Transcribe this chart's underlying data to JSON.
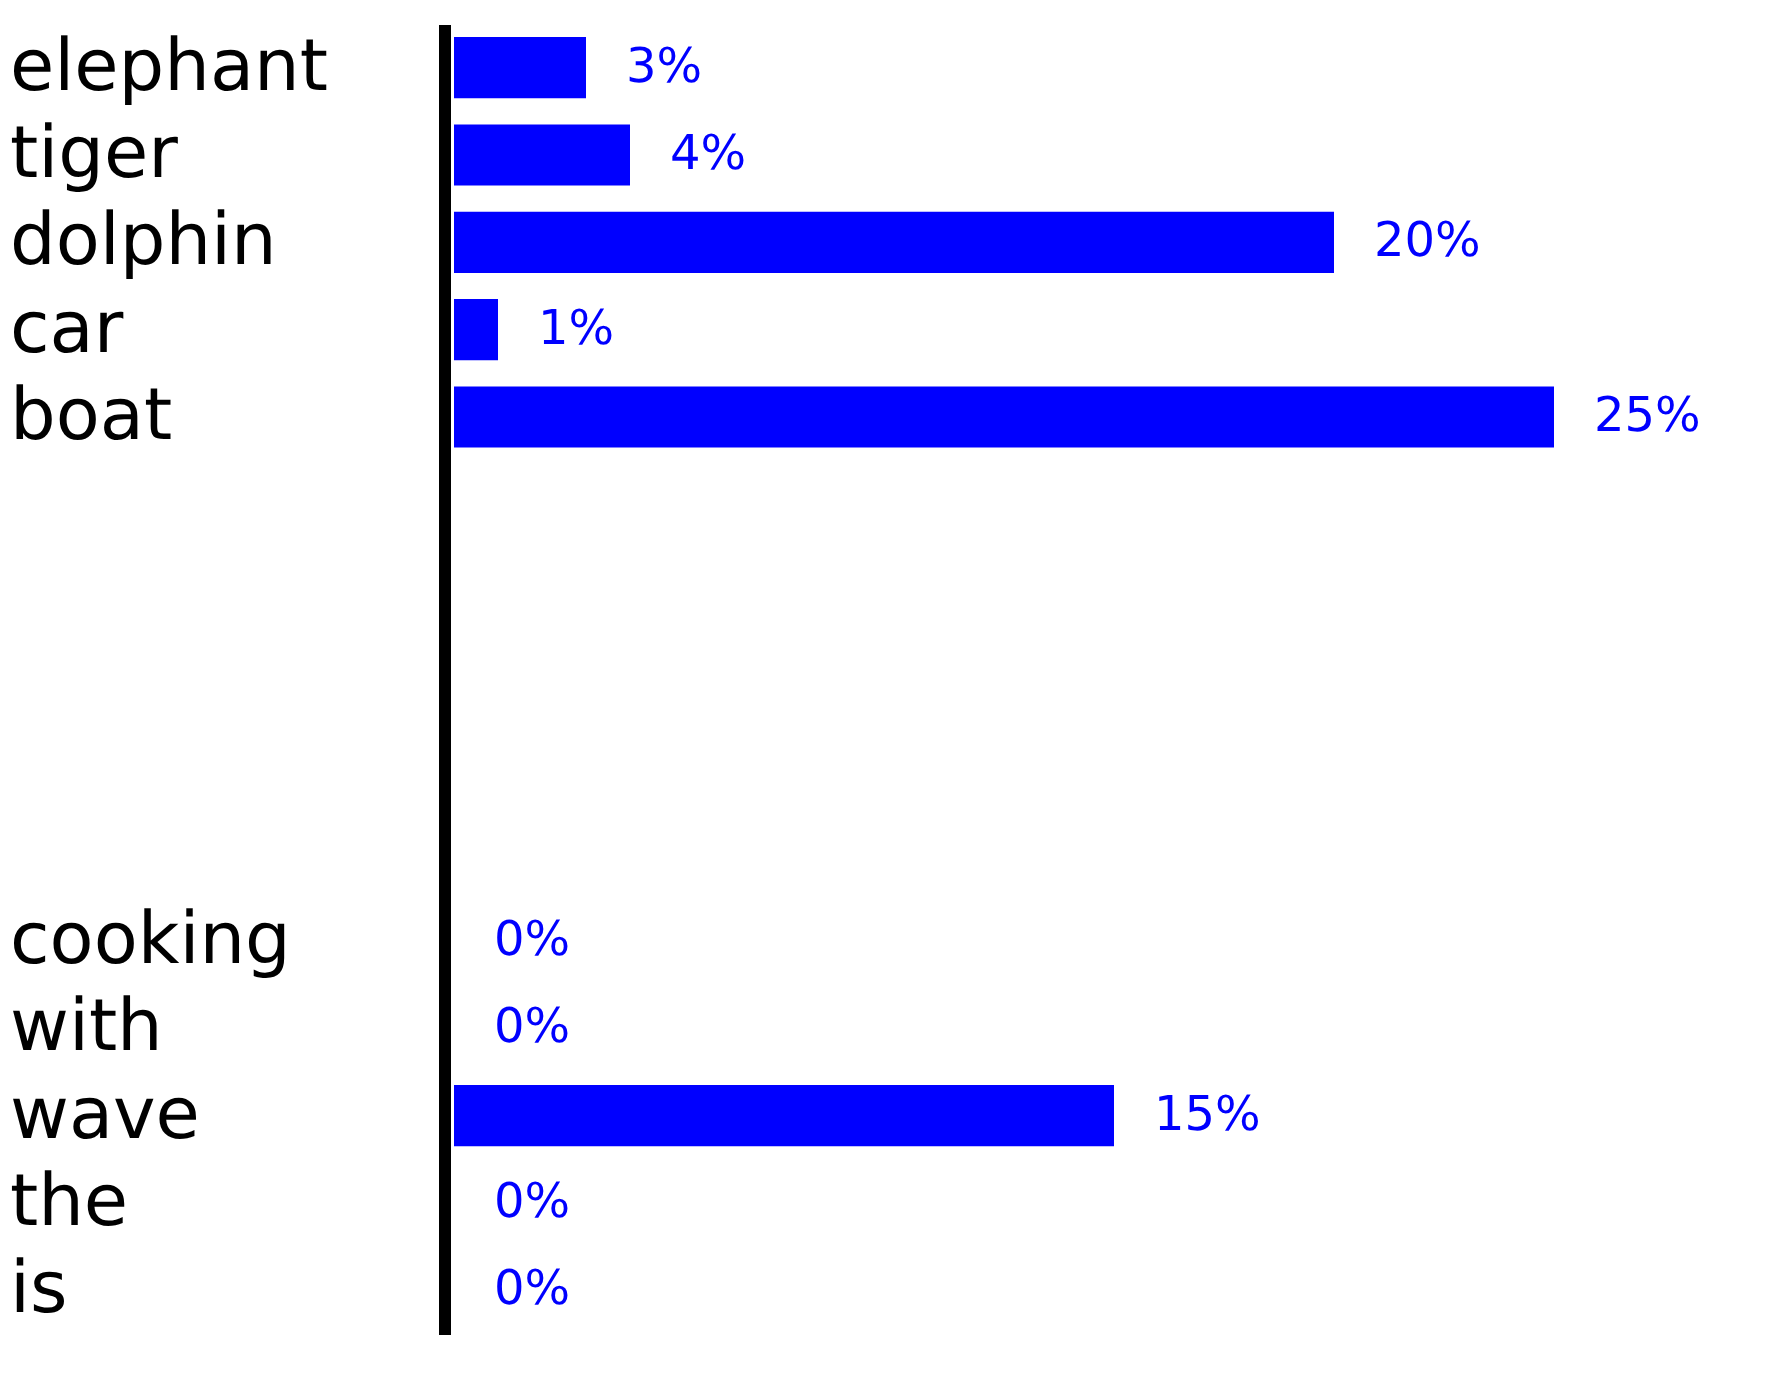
{
  "chart_data": {
    "type": "bar",
    "orientation": "horizontal",
    "categories": [
      "elephant",
      "tiger",
      "dolphin",
      "car",
      "boat",
      null,
      null,
      null,
      null,
      null,
      "cooking",
      "with",
      "wave",
      "the",
      "is"
    ],
    "series": [
      {
        "color": "#0000ff",
        "values": [
          3,
          4,
          20,
          1,
          25,
          null,
          null,
          null,
          null,
          null,
          0,
          0,
          15,
          0,
          0
        ],
        "value_labels": [
          "3%",
          "4%",
          "20%",
          "1%",
          "25%",
          null,
          null,
          null,
          null,
          null,
          "0%",
          "0%",
          "15%",
          "0%",
          "0%"
        ]
      }
    ],
    "grid": false
  }
}
